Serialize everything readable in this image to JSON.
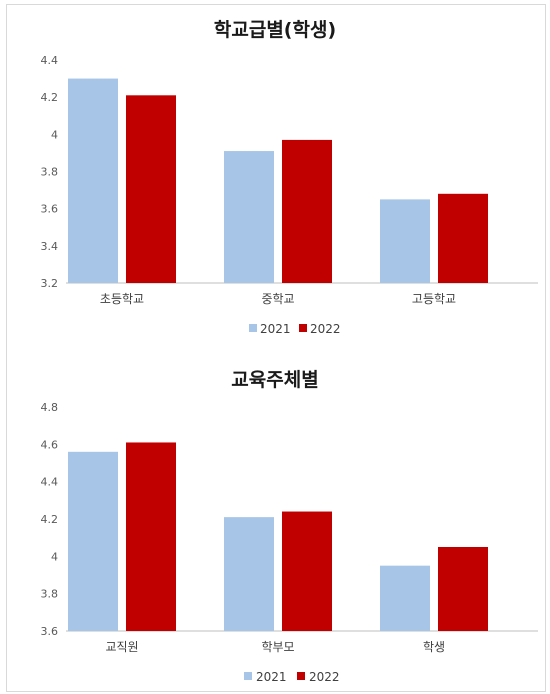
{
  "chart_data": [
    {
      "type": "bar",
      "title": "학교급별(학생)",
      "categories": [
        "초등학교",
        "중학교",
        "고등학교"
      ],
      "series": [
        {
          "name": "2021",
          "values": [
            4.3,
            3.91,
            3.65
          ],
          "color": "#a7c5e6"
        },
        {
          "name": "2022",
          "values": [
            4.21,
            3.97,
            3.68
          ],
          "color": "#c00000"
        }
      ],
      "yticks": [
        "3.2",
        "3.4",
        "3.6",
        "3.8",
        "4",
        "4.2",
        "4.4"
      ],
      "ylim": [
        3.2,
        4.4
      ],
      "grid": false,
      "legend": "bottom-center"
    },
    {
      "type": "bar",
      "title": "교육주체별",
      "categories": [
        "교직원",
        "학부모",
        "학생"
      ],
      "series": [
        {
          "name": "2021",
          "values": [
            4.56,
            4.21,
            3.95
          ],
          "color": "#a7c5e6"
        },
        {
          "name": "2022",
          "values": [
            4.61,
            4.24,
            4.05
          ],
          "color": "#c00000"
        }
      ],
      "yticks": [
        "3.6",
        "3.8",
        "4",
        "4.2",
        "4.4",
        "4.6",
        "4.8"
      ],
      "ylim": [
        3.6,
        4.8
      ],
      "grid": false,
      "legend": "bottom-center"
    }
  ]
}
